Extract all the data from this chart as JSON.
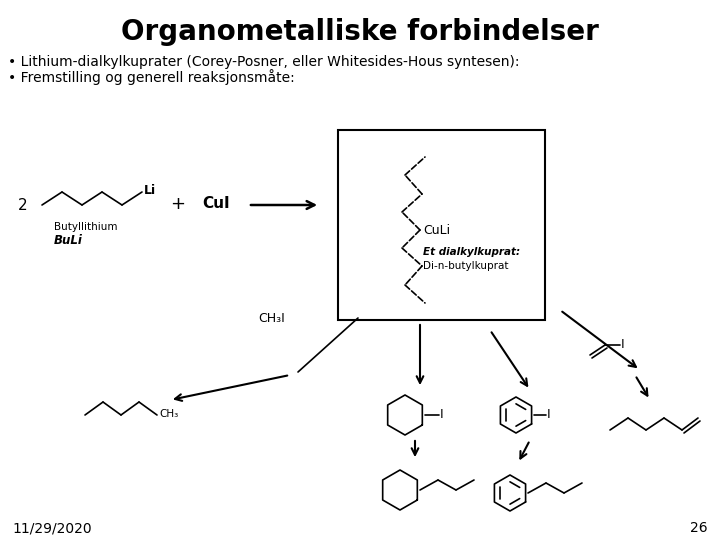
{
  "title": "Organometalliske forbindelser",
  "bullet1": "• Lithium-dialkylkuprater (Corey-Posner, eller Whitesides-Hous syntesen):",
  "bullet2": "• Fremstilling og generell reaksjonsmåte:",
  "date": "11/29/2020",
  "page": "26",
  "bg_color": "#ffffff",
  "text_color": "#000000",
  "title_fontsize": 20,
  "bullet_fontsize": 10,
  "footer_fontsize": 10
}
